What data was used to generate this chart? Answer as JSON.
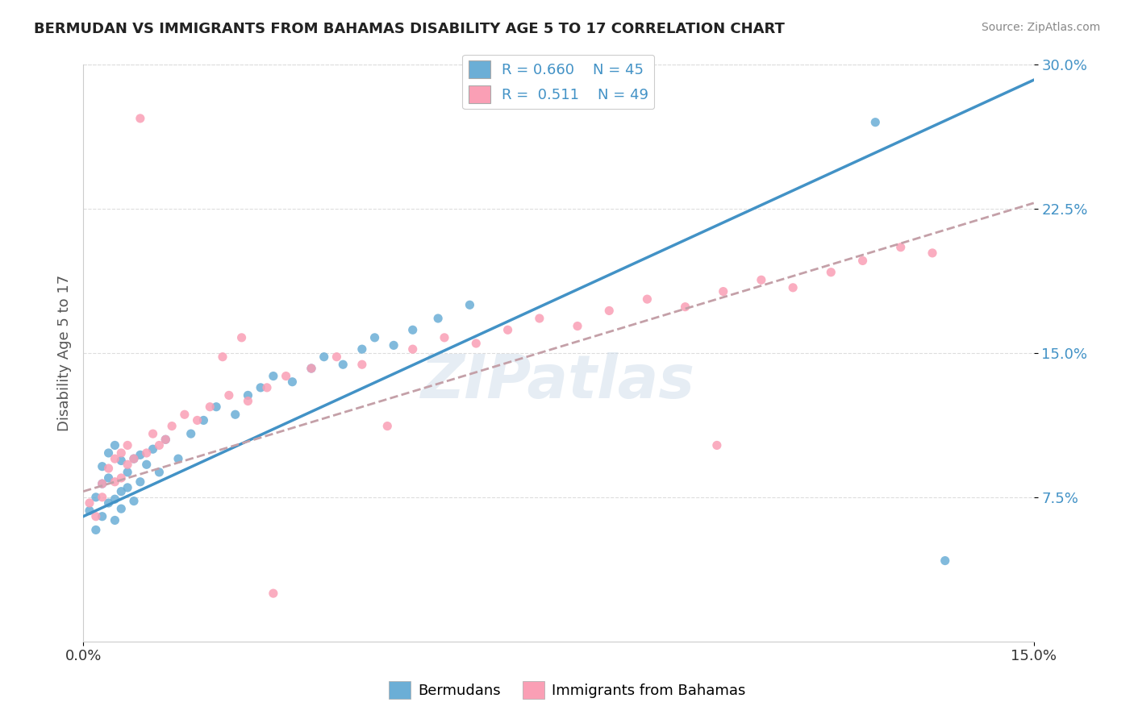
{
  "title": "BERMUDAN VS IMMIGRANTS FROM BAHAMAS DISABILITY AGE 5 TO 17 CORRELATION CHART",
  "source": "Source: ZipAtlas.com",
  "ylabel": "Disability Age 5 to 17",
  "legend_label_blue": "Bermudans",
  "legend_label_pink": "Immigrants from Bahamas",
  "R_blue": 0.66,
  "N_blue": 45,
  "R_pink": 0.511,
  "N_pink": 49,
  "xmin": 0.0,
  "xmax": 0.15,
  "ymin": 0.0,
  "ymax": 0.3,
  "blue_color": "#6baed6",
  "pink_color": "#fa9fb5",
  "line_blue": "#4292c6",
  "watermark": "ZIPatlas",
  "blue_scatter_x": [
    0.001,
    0.002,
    0.002,
    0.003,
    0.003,
    0.003,
    0.004,
    0.004,
    0.004,
    0.005,
    0.005,
    0.005,
    0.006,
    0.006,
    0.006,
    0.007,
    0.007,
    0.008,
    0.008,
    0.009,
    0.009,
    0.01,
    0.011,
    0.012,
    0.013,
    0.015,
    0.017,
    0.019,
    0.021,
    0.024,
    0.026,
    0.028,
    0.03,
    0.033,
    0.036,
    0.038,
    0.041,
    0.044,
    0.046,
    0.049,
    0.052,
    0.056,
    0.061,
    0.125,
    0.136
  ],
  "blue_scatter_y": [
    0.068,
    0.075,
    0.058,
    0.082,
    0.065,
    0.091,
    0.072,
    0.085,
    0.098,
    0.063,
    0.074,
    0.102,
    0.069,
    0.078,
    0.094,
    0.08,
    0.088,
    0.073,
    0.095,
    0.083,
    0.097,
    0.092,
    0.1,
    0.088,
    0.105,
    0.095,
    0.108,
    0.115,
    0.122,
    0.118,
    0.128,
    0.132,
    0.138,
    0.135,
    0.142,
    0.148,
    0.144,
    0.152,
    0.158,
    0.154,
    0.162,
    0.168,
    0.175,
    0.27,
    0.042
  ],
  "pink_scatter_x": [
    0.001,
    0.002,
    0.003,
    0.003,
    0.004,
    0.005,
    0.005,
    0.006,
    0.006,
    0.007,
    0.007,
    0.008,
    0.009,
    0.01,
    0.011,
    0.012,
    0.014,
    0.016,
    0.018,
    0.02,
    0.023,
    0.026,
    0.029,
    0.032,
    0.036,
    0.04,
    0.044,
    0.048,
    0.052,
    0.057,
    0.062,
    0.067,
    0.072,
    0.078,
    0.083,
    0.089,
    0.095,
    0.101,
    0.107,
    0.112,
    0.118,
    0.123,
    0.129,
    0.134,
    0.022,
    0.025,
    0.1,
    0.03,
    0.013
  ],
  "pink_scatter_y": [
    0.072,
    0.065,
    0.082,
    0.075,
    0.09,
    0.083,
    0.095,
    0.085,
    0.098,
    0.092,
    0.102,
    0.095,
    0.272,
    0.098,
    0.108,
    0.102,
    0.112,
    0.118,
    0.115,
    0.122,
    0.128,
    0.125,
    0.132,
    0.138,
    0.142,
    0.148,
    0.144,
    0.112,
    0.152,
    0.158,
    0.155,
    0.162,
    0.168,
    0.164,
    0.172,
    0.178,
    0.174,
    0.182,
    0.188,
    0.184,
    0.192,
    0.198,
    0.205,
    0.202,
    0.148,
    0.158,
    0.102,
    0.025,
    0.105
  ],
  "blue_line_x": [
    0.0,
    0.15
  ],
  "blue_line_y": [
    0.065,
    0.292
  ],
  "pink_line_x": [
    0.0,
    0.15
  ],
  "pink_line_y": [
    0.078,
    0.228
  ]
}
